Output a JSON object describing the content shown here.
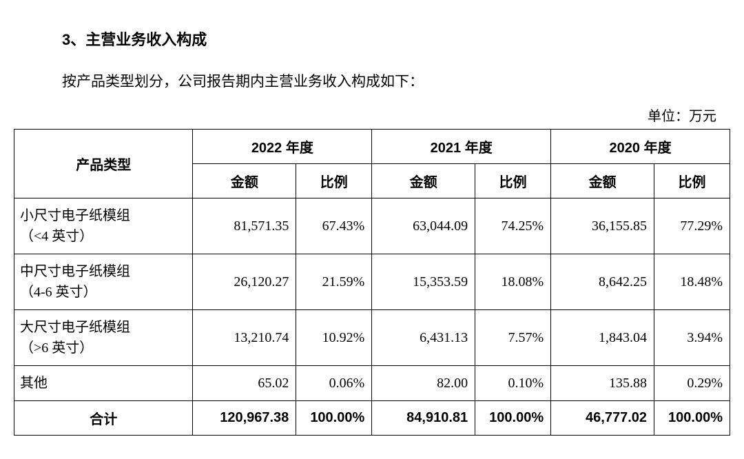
{
  "heading": "3、主营业务收入构成",
  "intro": "按产品类型划分，公司报告期内主营业务收入构成如下：",
  "unit_label": "单位：万元",
  "table": {
    "header": {
      "product_type": "产品类型",
      "years": [
        "2022 年度",
        "2021 年度",
        "2020 年度"
      ],
      "amount": "金额",
      "ratio": "比例"
    },
    "rows": [
      {
        "name_line1": "小尺寸电子纸模组",
        "name_line2": "（<4 英寸）",
        "y2022_amount": "81,571.35",
        "y2022_ratio": "67.43%",
        "y2021_amount": "63,044.09",
        "y2021_ratio": "74.25%",
        "y2020_amount": "36,155.85",
        "y2020_ratio": "77.29%",
        "tall": true
      },
      {
        "name_line1": "中尺寸电子纸模组",
        "name_line2": "（4-6 英寸）",
        "y2022_amount": "26,120.27",
        "y2022_ratio": "21.59%",
        "y2021_amount": "15,353.59",
        "y2021_ratio": "18.08%",
        "y2020_amount": "8,642.25",
        "y2020_ratio": "18.48%",
        "tall": true
      },
      {
        "name_line1": "大尺寸电子纸模组",
        "name_line2": "（>6 英寸）",
        "y2022_amount": "13,210.74",
        "y2022_ratio": "10.92%",
        "y2021_amount": "6,431.13",
        "y2021_ratio": "7.57%",
        "y2020_amount": "1,843.04",
        "y2020_ratio": "3.94%",
        "tall": true
      },
      {
        "name_line1": "其他",
        "name_line2": "",
        "y2022_amount": "65.02",
        "y2022_ratio": "0.06%",
        "y2021_amount": "82.00",
        "y2021_ratio": "0.10%",
        "y2020_amount": "135.88",
        "y2020_ratio": "0.29%",
        "tall": false
      }
    ],
    "total": {
      "label": "合计",
      "y2022_amount": "120,967.38",
      "y2022_ratio": "100.00%",
      "y2021_amount": "84,910.81",
      "y2021_ratio": "100.00%",
      "y2020_amount": "46,777.02",
      "y2020_ratio": "100.00%"
    }
  },
  "style": {
    "background_color": "#ffffff",
    "text_color": "#000000",
    "border_color": "#000000",
    "heading_fontsize": 22,
    "body_fontsize": 21,
    "table_fontsize": 20
  }
}
